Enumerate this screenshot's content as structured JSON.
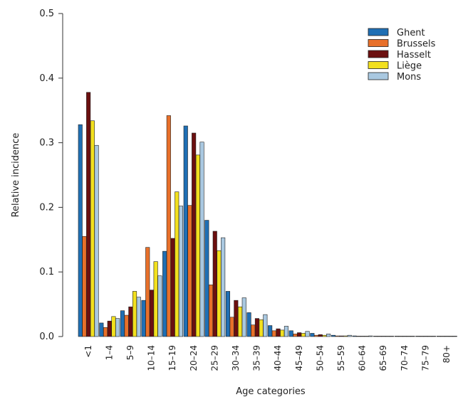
{
  "chart_data": {
    "type": "bar",
    "xlabel": "Age categories",
    "ylabel": "Relative incidence",
    "ylim": [
      0,
      0.5
    ],
    "yticks": [
      "0.0",
      "0.1",
      "0.2",
      "0.3",
      "0.4",
      "0.5"
    ],
    "ytick_values": [
      0,
      0.1,
      0.2,
      0.3,
      0.4,
      0.5
    ],
    "legend_position": "top-right",
    "grid": false,
    "categories": [
      "<1",
      "1–4",
      "5–9",
      "10–14",
      "15–19",
      "20–24",
      "25–29",
      "30–34",
      "35–39",
      "40–44",
      "45–49",
      "50–54",
      "55–59",
      "60–64",
      "65–69",
      "70–74",
      "75–79",
      "80+"
    ],
    "series": [
      {
        "name": "Ghent",
        "color": "#1f6fb4",
        "values": [
          0.328,
          0.021,
          0.04,
          0.056,
          0.132,
          0.326,
          0.18,
          0.07,
          0.037,
          0.017,
          0.009,
          0.005,
          0.002,
          0.001,
          0.0005,
          0.0003,
          0.0002,
          0.0001
        ]
      },
      {
        "name": "Brussels",
        "color": "#e8702a",
        "values": [
          0.155,
          0.014,
          0.033,
          0.138,
          0.342,
          0.203,
          0.08,
          0.03,
          0.018,
          0.009,
          0.004,
          0.002,
          0.001,
          0.0005,
          0.0003,
          0.0002,
          0.0001,
          0.0001
        ]
      },
      {
        "name": "Hasselt",
        "color": "#6b0f0f",
        "values": [
          0.378,
          0.024,
          0.046,
          0.072,
          0.152,
          0.315,
          0.163,
          0.056,
          0.028,
          0.012,
          0.006,
          0.003,
          0.001,
          0.0005,
          0.0003,
          0.0002,
          0.0001,
          0.0001
        ]
      },
      {
        "name": "Liège",
        "color": "#f2e01e",
        "values": [
          0.334,
          0.031,
          0.07,
          0.116,
          0.224,
          0.281,
          0.133,
          0.046,
          0.026,
          0.01,
          0.005,
          0.002,
          0.001,
          0.0005,
          0.0003,
          0.0002,
          0.0001,
          0.0001
        ]
      },
      {
        "name": "Mons",
        "color": "#a9c8e0",
        "values": [
          0.296,
          0.028,
          0.061,
          0.094,
          0.202,
          0.301,
          0.153,
          0.06,
          0.034,
          0.016,
          0.008,
          0.004,
          0.002,
          0.001,
          0.0005,
          0.0003,
          0.0002,
          0.0001
        ]
      }
    ]
  }
}
